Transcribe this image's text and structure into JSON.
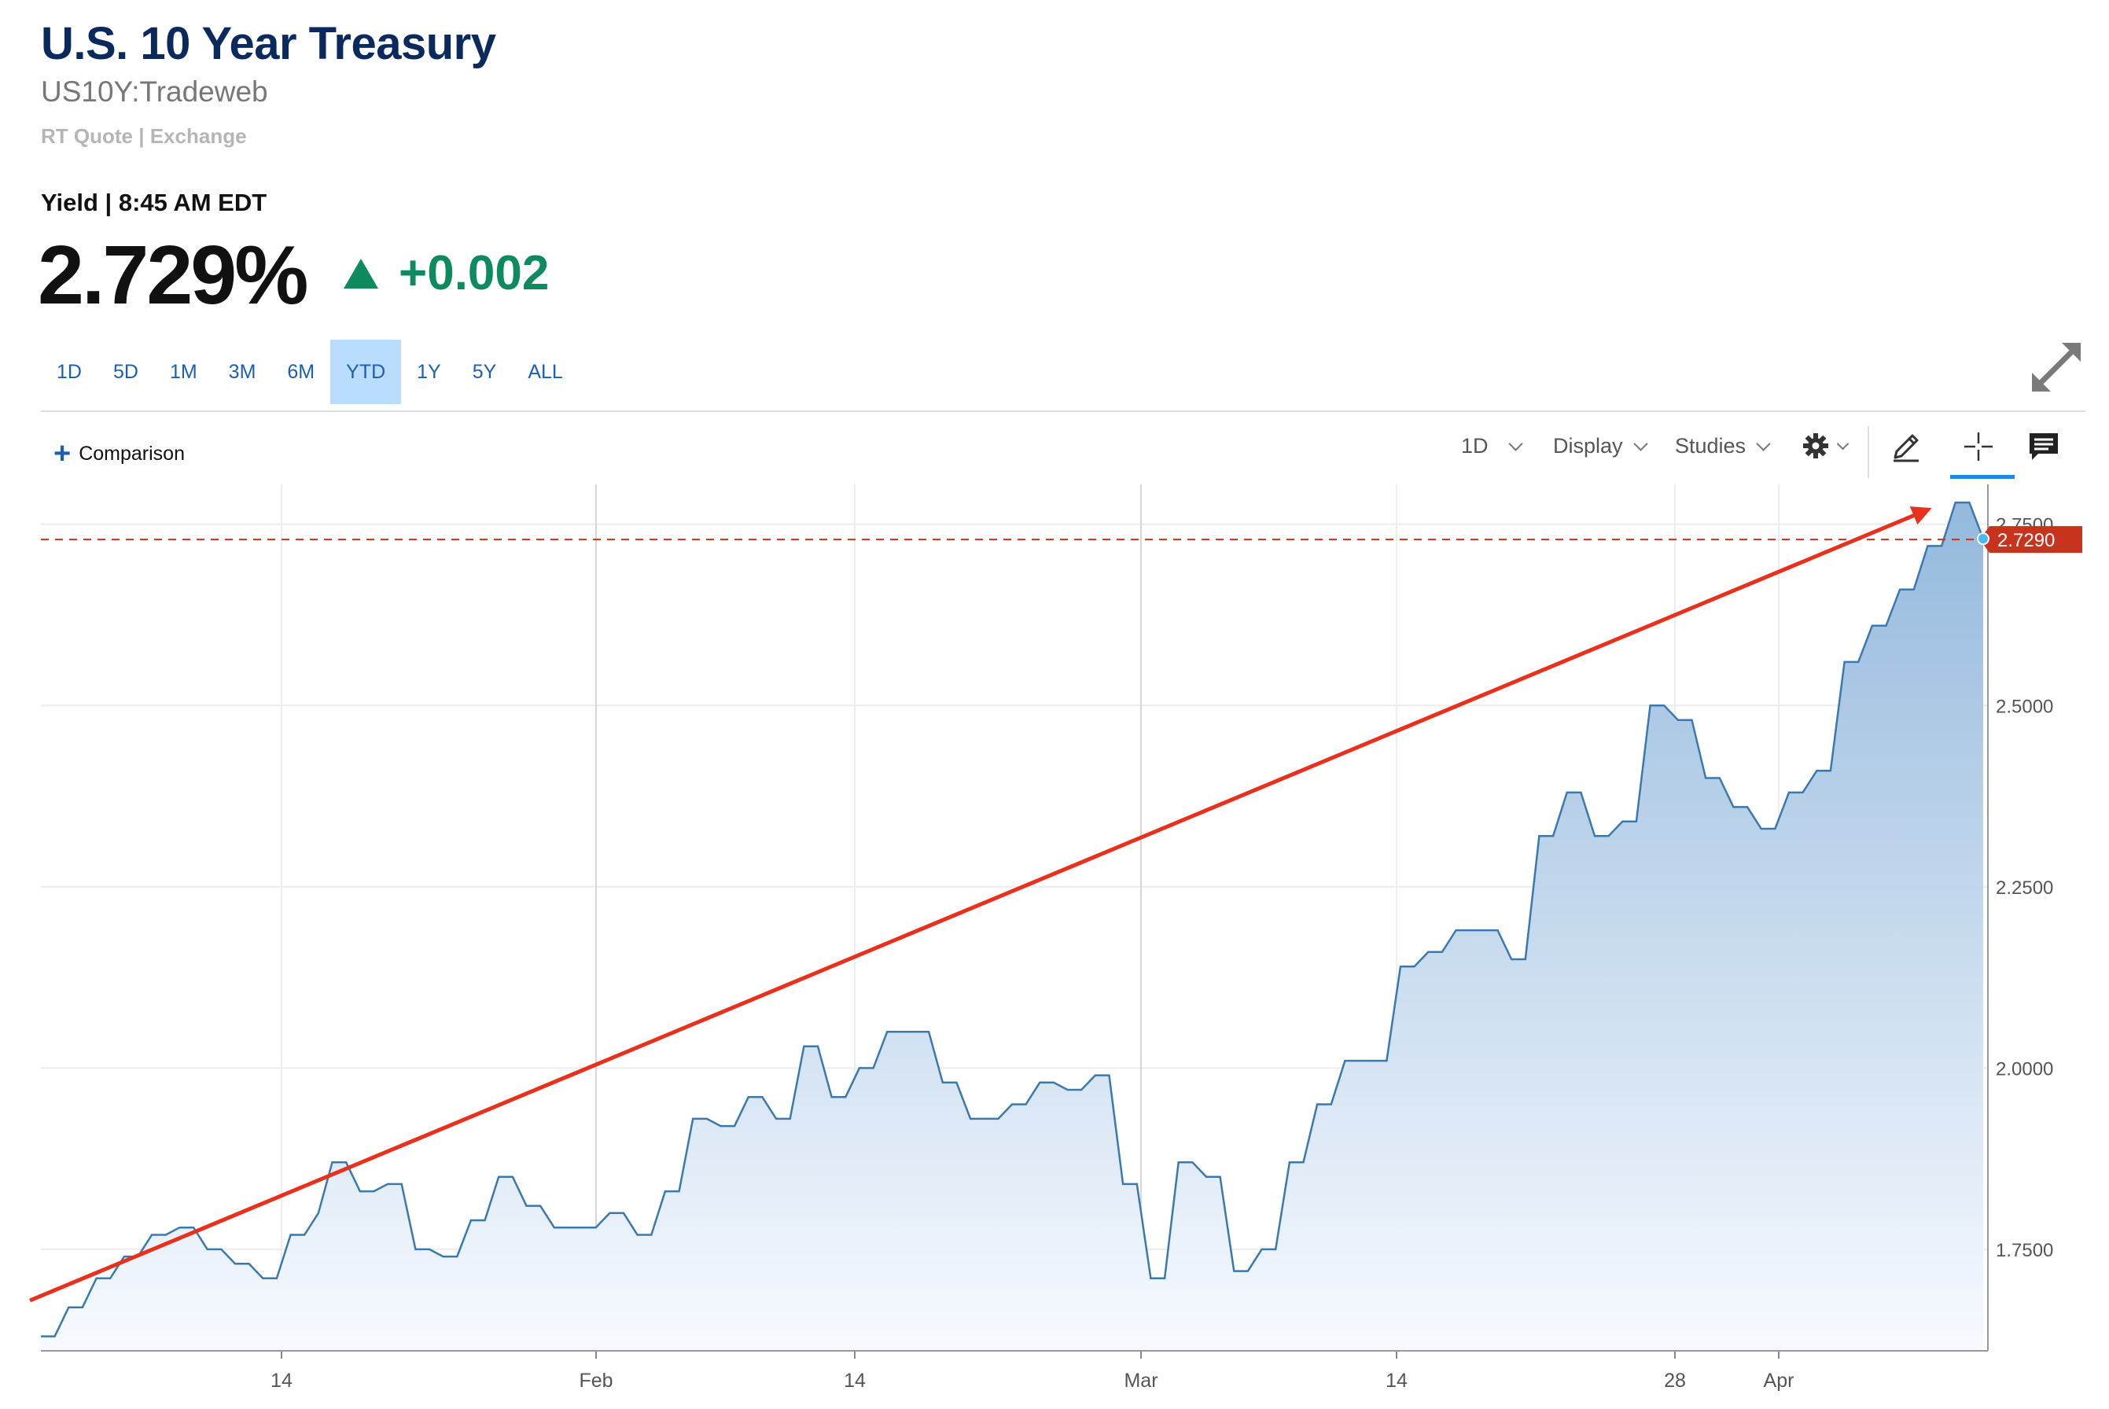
{
  "header": {
    "title": "U.S. 10 Year Treasury",
    "symbol": "US10Y:Tradeweb",
    "quote_source": "RT Quote | Exchange",
    "yield_label": "Yield | 8:45 AM EDT",
    "price": "2.729%",
    "change": "+0.002"
  },
  "ranges": [
    {
      "label": "1D"
    },
    {
      "label": "5D"
    },
    {
      "label": "1M"
    },
    {
      "label": "3M"
    },
    {
      "label": "6M"
    },
    {
      "label": "YTD",
      "active": true
    },
    {
      "label": "1Y"
    },
    {
      "label": "5Y"
    },
    {
      "label": "ALL"
    }
  ],
  "toolbar": {
    "comparison": "Comparison",
    "interval": "1D",
    "display": "Display",
    "studies": "Studies",
    "icons": [
      "gear-icon",
      "pencil-icon",
      "crosshair-icon",
      "comment-icon",
      "expand-icon"
    ]
  },
  "colors": {
    "title": "#0a2a5e",
    "change_up": "#0e8a5f",
    "range_active_bg": "#b9dcff",
    "line": "#3a79b0",
    "area_top": "#94b9dc",
    "area_bottom": "#f7faff",
    "current_marker": "#c8331d",
    "trend_arrow": "#e8301c"
  },
  "chart_data": {
    "type": "area",
    "x_ticks": [
      "14",
      "Feb",
      "14",
      "Mar",
      "14",
      "28",
      "Apr"
    ],
    "y_ticks": [
      "1.7500",
      "2.0000",
      "2.2500",
      "2.5000",
      "2.7500"
    ],
    "ylim": [
      1.61,
      2.805
    ],
    "current_value_label": "2.7290",
    "current_value": 2.729,
    "values": [
      1.63,
      1.63,
      1.67,
      1.67,
      1.71,
      1.71,
      1.74,
      1.74,
      1.77,
      1.77,
      1.78,
      1.78,
      1.75,
      1.75,
      1.73,
      1.73,
      1.71,
      1.71,
      1.77,
      1.77,
      1.8,
      1.87,
      1.87,
      1.83,
      1.83,
      1.84,
      1.84,
      1.75,
      1.75,
      1.74,
      1.74,
      1.79,
      1.79,
      1.85,
      1.85,
      1.81,
      1.81,
      1.78,
      1.78,
      1.78,
      1.78,
      1.8,
      1.8,
      1.77,
      1.77,
      1.83,
      1.83,
      1.93,
      1.93,
      1.92,
      1.92,
      1.96,
      1.96,
      1.93,
      1.93,
      2.03,
      2.03,
      1.96,
      1.96,
      2.0,
      2.0,
      2.05,
      2.05,
      2.05,
      2.05,
      1.98,
      1.98,
      1.93,
      1.93,
      1.93,
      1.95,
      1.95,
      1.98,
      1.98,
      1.97,
      1.97,
      1.99,
      1.99,
      1.84,
      1.84,
      1.71,
      1.71,
      1.87,
      1.87,
      1.85,
      1.85,
      1.72,
      1.72,
      1.75,
      1.75,
      1.87,
      1.87,
      1.95,
      1.95,
      2.01,
      2.01,
      2.01,
      2.01,
      2.14,
      2.14,
      2.16,
      2.16,
      2.19,
      2.19,
      2.19,
      2.19,
      2.15,
      2.15,
      2.32,
      2.32,
      2.38,
      2.38,
      2.32,
      2.32,
      2.34,
      2.34,
      2.5,
      2.5,
      2.48,
      2.48,
      2.4,
      2.4,
      2.36,
      2.36,
      2.33,
      2.33,
      2.38,
      2.38,
      2.41,
      2.41,
      2.56,
      2.56,
      2.61,
      2.61,
      2.66,
      2.66,
      2.72,
      2.72,
      2.78,
      2.78,
      2.73
    ]
  }
}
